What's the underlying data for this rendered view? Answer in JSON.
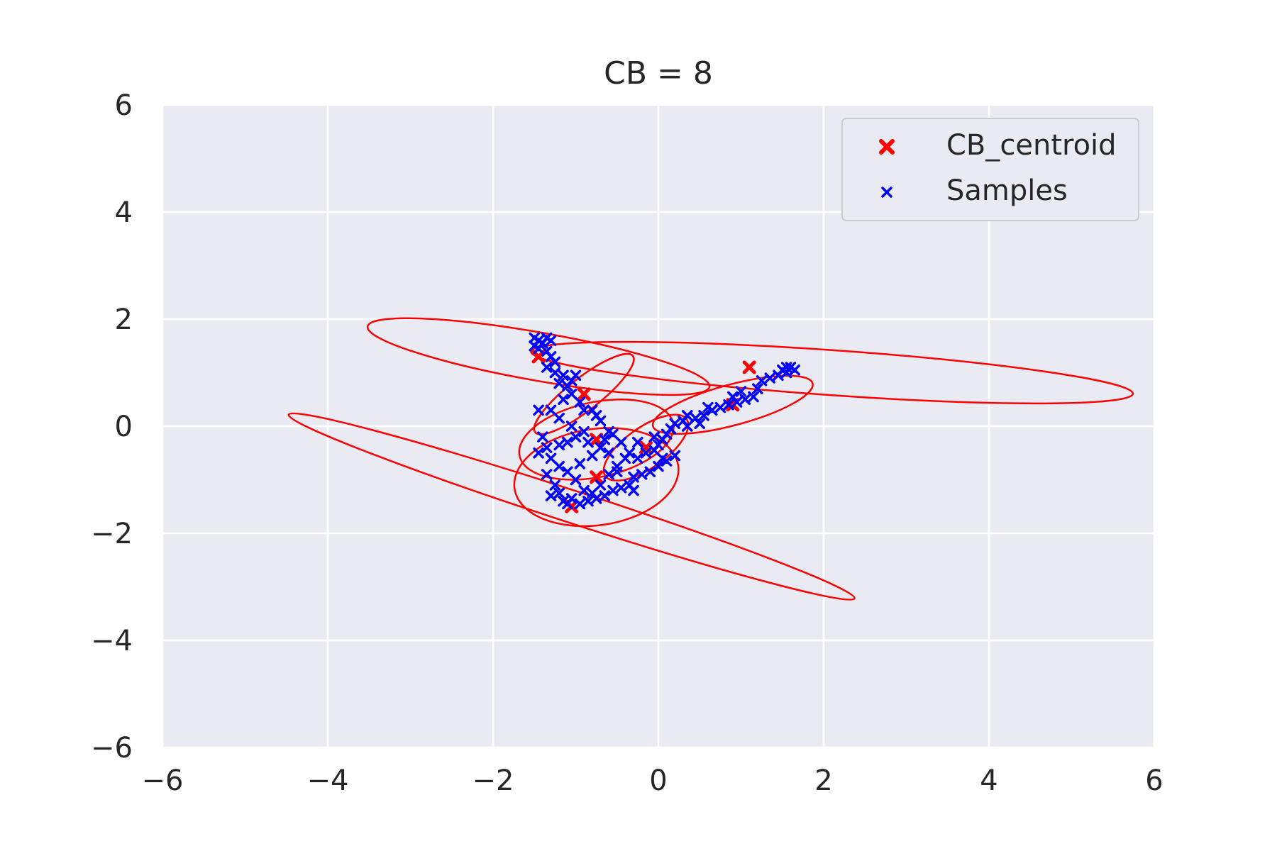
{
  "chart_data": {
    "type": "scatter",
    "title": "CB = 8",
    "xlabel": "",
    "ylabel": "",
    "xlim": [
      -6,
      6
    ],
    "ylim": [
      -6,
      6
    ],
    "xticks": [
      -6,
      -4,
      -2,
      0,
      2,
      4,
      6
    ],
    "yticks": [
      -6,
      -4,
      -2,
      0,
      2,
      4,
      6
    ],
    "xtick_labels": [
      "−6",
      "−4",
      "−2",
      "0",
      "2",
      "4",
      "6"
    ],
    "ytick_labels": [
      "−6",
      "−4",
      "−2",
      "0",
      "2",
      "4",
      "6"
    ],
    "grid": true,
    "legend_position": "top-right",
    "colors": {
      "background": "#eaeaf2",
      "grid": "#ffffff",
      "centroid": "#ff0000",
      "samples": "#0000ff",
      "ellipse": "#ff0000"
    },
    "legend": [
      {
        "label": "CB_centroid",
        "color": "#ff0000",
        "marker": "filled-x"
      },
      {
        "label": "Samples",
        "color": "#0000ff",
        "marker": "x"
      }
    ],
    "series": [
      {
        "name": "CB_centroid",
        "color": "#ff0000",
        "points": [
          [
            -1.45,
            1.3
          ],
          [
            -0.9,
            0.6
          ],
          [
            -0.75,
            -0.25
          ],
          [
            -0.75,
            -0.95
          ],
          [
            -0.15,
            -0.4
          ],
          [
            0.9,
            0.4
          ],
          [
            1.1,
            1.1
          ],
          [
            -1.05,
            -1.5
          ]
        ]
      },
      {
        "name": "Samples",
        "color": "#0000ff",
        "points": [
          [
            -1.5,
            1.65
          ],
          [
            -1.45,
            1.6
          ],
          [
            -1.4,
            1.55
          ],
          [
            -1.35,
            1.65
          ],
          [
            -1.3,
            1.6
          ],
          [
            -1.5,
            1.5
          ],
          [
            -1.45,
            1.45
          ],
          [
            -1.35,
            1.4
          ],
          [
            -1.3,
            1.3
          ],
          [
            -1.25,
            1.2
          ],
          [
            -1.35,
            1.1
          ],
          [
            -1.15,
            0.95
          ],
          [
            -1.2,
            0.8
          ],
          [
            -1.1,
            0.75
          ],
          [
            -1.0,
            0.95
          ],
          [
            -1.05,
            0.6
          ],
          [
            -0.95,
            0.45
          ],
          [
            -1.15,
            0.5
          ],
          [
            -1.3,
            0.3
          ],
          [
            -1.45,
            0.3
          ],
          [
            -1.2,
            0.15
          ],
          [
            -0.9,
            0.3
          ],
          [
            -0.8,
            0.3
          ],
          [
            -0.7,
            0.1
          ],
          [
            -0.6,
            -0.1
          ],
          [
            -1.05,
            0.0
          ],
          [
            -1.0,
            -0.2
          ],
          [
            -0.85,
            -0.3
          ],
          [
            -1.2,
            -0.35
          ],
          [
            -1.35,
            -0.4
          ],
          [
            -1.45,
            -0.5
          ],
          [
            -1.3,
            -0.6
          ],
          [
            -1.2,
            -0.75
          ],
          [
            -1.1,
            -0.85
          ],
          [
            -0.95,
            -0.7
          ],
          [
            -0.8,
            -0.55
          ],
          [
            -0.7,
            -0.4
          ],
          [
            -0.65,
            -0.25
          ],
          [
            -0.55,
            -0.15
          ],
          [
            -0.45,
            -0.3
          ],
          [
            -0.35,
            -0.5
          ],
          [
            -0.25,
            -0.6
          ],
          [
            -0.15,
            -0.5
          ],
          [
            -0.05,
            -0.45
          ],
          [
            0.0,
            -0.35
          ],
          [
            0.05,
            -0.25
          ],
          [
            0.1,
            -0.15
          ],
          [
            0.15,
            -0.05
          ],
          [
            0.2,
            0.05
          ],
          [
            0.3,
            0.1
          ],
          [
            0.35,
            0.2
          ],
          [
            0.45,
            0.15
          ],
          [
            0.5,
            0.05
          ],
          [
            0.55,
            0.2
          ],
          [
            0.65,
            0.3
          ],
          [
            0.75,
            0.35
          ],
          [
            0.85,
            0.4
          ],
          [
            0.95,
            0.45
          ],
          [
            1.05,
            0.5
          ],
          [
            1.15,
            0.55
          ],
          [
            1.2,
            0.7
          ],
          [
            1.25,
            0.85
          ],
          [
            1.35,
            0.9
          ],
          [
            1.45,
            0.95
          ],
          [
            1.5,
            1.05
          ],
          [
            1.55,
            1.1
          ],
          [
            1.6,
            1.1
          ],
          [
            1.65,
            1.05
          ],
          [
            1.55,
            1.0
          ],
          [
            1.0,
            0.65
          ],
          [
            0.9,
            0.55
          ],
          [
            0.6,
            0.35
          ],
          [
            -1.35,
            -0.9
          ],
          [
            -1.25,
            -1.1
          ],
          [
            -1.2,
            -1.25
          ],
          [
            -1.3,
            -1.3
          ],
          [
            -1.15,
            -1.4
          ],
          [
            -1.05,
            -1.35
          ],
          [
            -0.95,
            -1.45
          ],
          [
            -0.85,
            -1.4
          ],
          [
            -0.75,
            -1.35
          ],
          [
            -0.65,
            -1.3
          ],
          [
            -0.55,
            -1.2
          ],
          [
            -0.45,
            -1.15
          ],
          [
            -0.35,
            -1.1
          ],
          [
            -0.3,
            -0.95
          ],
          [
            -0.2,
            -0.9
          ],
          [
            -0.1,
            -0.85
          ],
          [
            0.0,
            -0.75
          ],
          [
            0.1,
            -0.65
          ],
          [
            0.2,
            -0.55
          ],
          [
            -0.6,
            -0.9
          ],
          [
            -0.5,
            -0.85
          ],
          [
            -0.7,
            -1.1
          ],
          [
            -0.9,
            -1.2
          ],
          [
            -1.0,
            -1.0
          ],
          [
            -1.1,
            -0.3
          ],
          [
            -0.9,
            -0.1
          ],
          [
            -0.75,
            0.2
          ],
          [
            -1.25,
            1.0
          ],
          [
            -1.05,
            0.85
          ],
          [
            -0.5,
            -0.75
          ],
          [
            -0.4,
            -0.6
          ],
          [
            -0.25,
            -0.3
          ],
          [
            -0.05,
            -0.2
          ],
          [
            -0.6,
            -0.5
          ],
          [
            -1.4,
            -0.2
          ],
          [
            -1.1,
            -1.45
          ],
          [
            -0.8,
            -1.25
          ],
          [
            -0.3,
            -1.2
          ],
          [
            0.05,
            -0.6
          ],
          [
            0.35,
            0.0
          ]
        ]
      }
    ],
    "ellipses": [
      {
        "cx": -1.45,
        "cy": 1.3,
        "rx": 2.1,
        "ry": 0.45,
        "angle": -10
      },
      {
        "cx": 2.1,
        "cy": 1.0,
        "rx": 3.65,
        "ry": 0.42,
        "angle": -4
      },
      {
        "cx": -0.9,
        "cy": 0.6,
        "rx": 0.75,
        "ry": 0.3,
        "angle": 38
      },
      {
        "cx": -0.75,
        "cy": -0.25,
        "rx": 0.95,
        "ry": 0.7,
        "angle": 12
      },
      {
        "cx": -0.75,
        "cy": -0.95,
        "rx": 1.0,
        "ry": 0.9,
        "angle": 8
      },
      {
        "cx": -1.05,
        "cy": -1.5,
        "rx": 3.6,
        "ry": 0.3,
        "angle": -18
      },
      {
        "cx": -0.15,
        "cy": -0.4,
        "rx": 0.6,
        "ry": 0.38,
        "angle": 35
      },
      {
        "cx": 0.9,
        "cy": 0.4,
        "rx": 1.0,
        "ry": 0.38,
        "angle": 15
      }
    ]
  }
}
